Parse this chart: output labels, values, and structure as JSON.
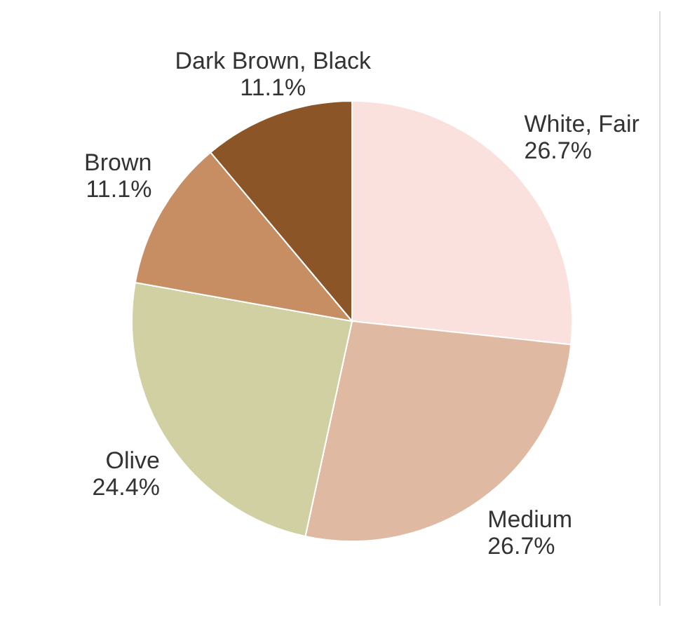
{
  "chart_data": {
    "type": "pie",
    "categories": [
      "White, Fair",
      "Medium",
      "Olive",
      "Brown",
      "Dark Brown, Black"
    ],
    "values": [
      26.7,
      26.7,
      24.4,
      11.1,
      11.1
    ],
    "value_labels": [
      "26.7%",
      "26.7%",
      "24.4%",
      "11.1%",
      "11.1%"
    ],
    "colors": [
      "#fae1dd",
      "#e0b9a2",
      "#d1d0a2",
      "#c68e62",
      "#8b5527"
    ],
    "legend": false
  }
}
